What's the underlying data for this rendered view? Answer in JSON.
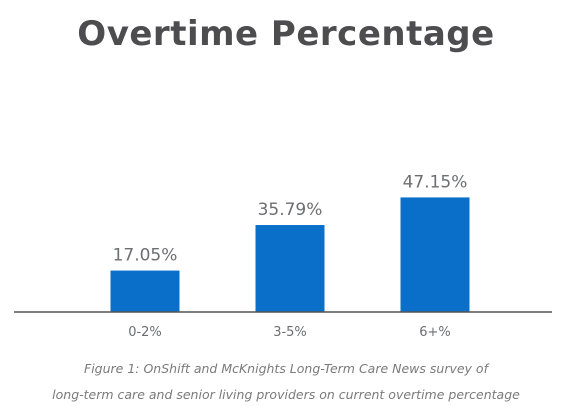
{
  "chart_data": {
    "type": "bar",
    "title": "Overtime Percentage",
    "categories": [
      "0-2%",
      "3-5%",
      "6+%"
    ],
    "values": [
      17.05,
      35.79,
      47.15
    ],
    "value_labels": [
      "17.05%",
      "35.79%",
      "47.15%"
    ],
    "xlabel": "",
    "ylabel": "",
    "ylim": [
      0,
      60
    ],
    "grid": false,
    "legend": "none",
    "bar_color": "#0a6fc9",
    "axis_color": "#555555"
  },
  "caption": {
    "line1": "Figure 1: OnShift and McKnights Long-Term Care News survey of",
    "line2": "long-term care and senior living providers on current overtime percentage"
  }
}
